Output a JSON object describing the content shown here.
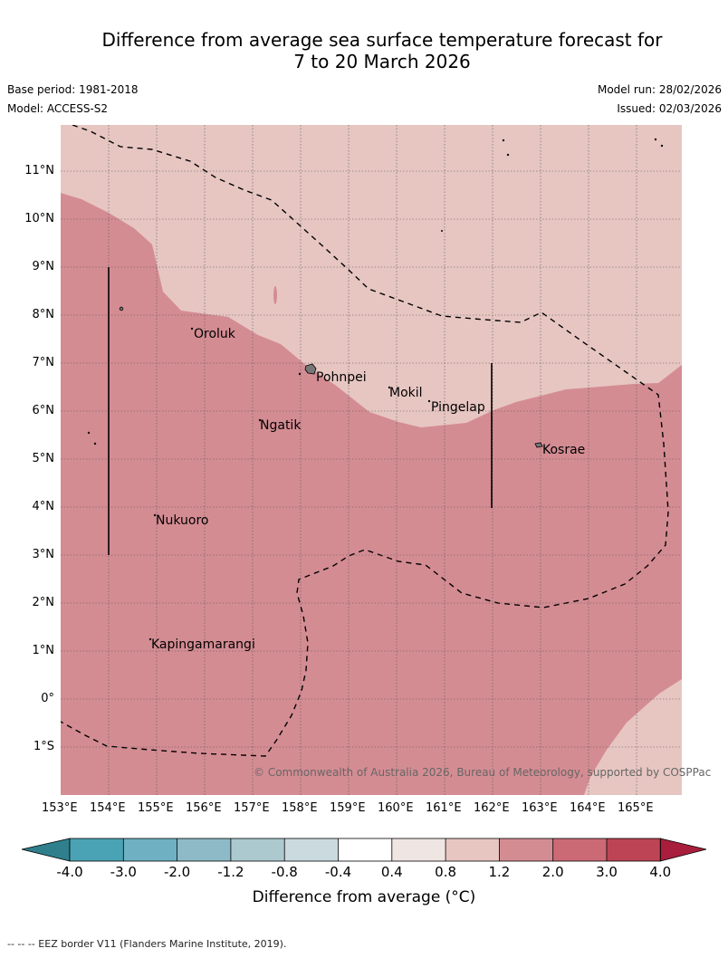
{
  "title_line1": "Difference from average sea surface temperature forecast for",
  "title_line2": "7 to 20 March 2026",
  "base_period": "Base period: 1981-2018",
  "model": "Model: ACCESS-S2",
  "model_run": "Model run: 28/02/2026",
  "issued": "Issued: 02/03/2026",
  "copyright": "© Commonwealth of Australia 2026, Bureau of Meteorology, supported by COSPPac",
  "lat_labels": [
    "11°N",
    "10°N",
    "9°N",
    "8°N",
    "7°N",
    "6°N",
    "5°N",
    "4°N",
    "3°N",
    "2°N",
    "1°N",
    "0°",
    "1°S"
  ],
  "lon_labels": [
    "153°E",
    "154°E",
    "155°E",
    "156°E",
    "157°E",
    "158°E",
    "159°E",
    "160°E",
    "161°E",
    "162°E",
    "163°E",
    "164°E",
    "165°E"
  ],
  "places": {
    "oroluk": "Oroluk",
    "pohnpei": "Pohnpei",
    "mokil": "Mokil",
    "pingelap": "Pingelap",
    "ngatik": "Ngatik",
    "kosrae": "Kosrae",
    "nukuoro": "Nukuoro",
    "kapingamarangi": "Kapingamarangi"
  },
  "colorbar": {
    "ticks": [
      "-4.0",
      "-3.0",
      "-2.0",
      "-1.2",
      "-0.8",
      "-0.4",
      "0.4",
      "0.8",
      "1.2",
      "2.0",
      "3.0",
      "4.0"
    ],
    "colors": [
      "#2f7f8c",
      "#4aa3b4",
      "#6fb1c2",
      "#8dbac6",
      "#abc9cf",
      "#cbdadf",
      "#ffffff",
      "#efe5e3",
      "#e7c6c2",
      "#d48c93",
      "#cb6a75",
      "#bd4454",
      "#a81e3c"
    ],
    "title": "Difference from average (°C)"
  },
  "anomaly_colors": {
    "band_0_8_to_1_2": "#e7c6c2",
    "band_1_2_to_2_0": "#d48c93"
  },
  "footer": "-- -- -- EEZ border V11 (Flanders Marine Institute, 2019)."
}
